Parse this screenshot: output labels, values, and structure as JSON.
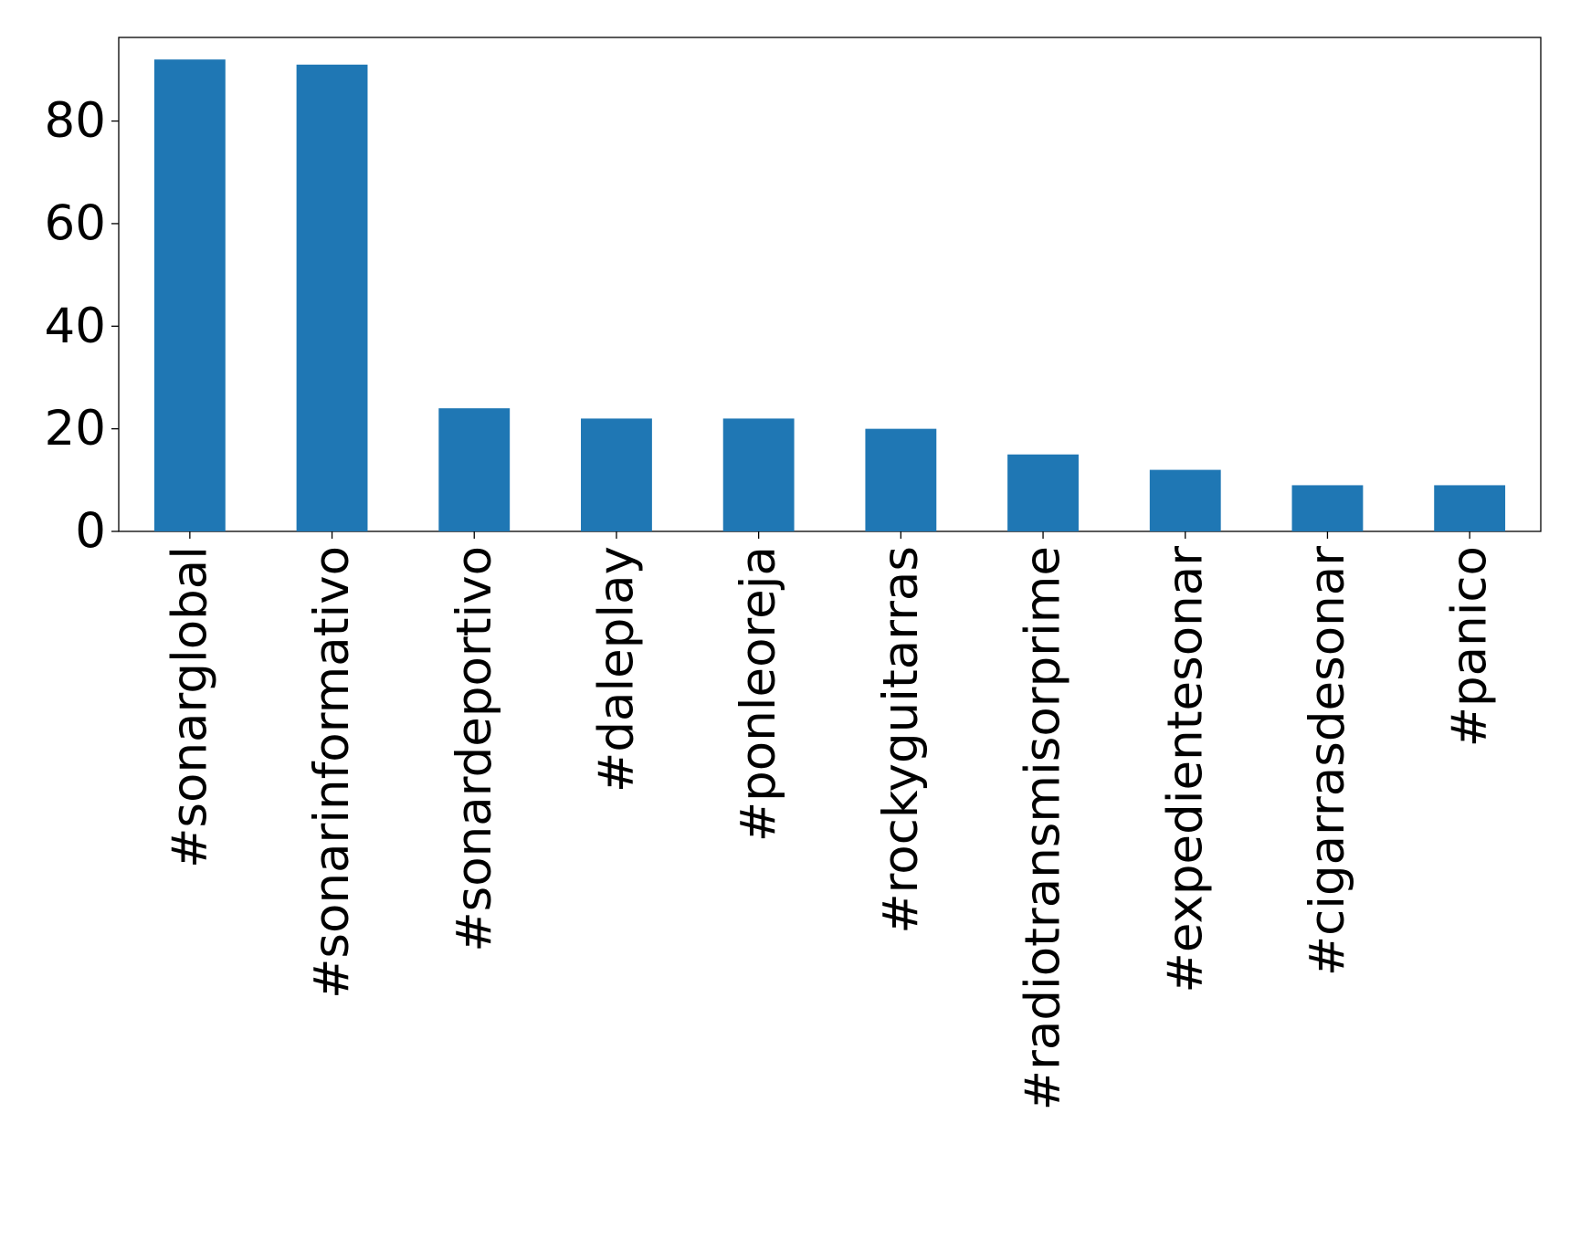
{
  "chart_data": {
    "type": "bar",
    "categories": [
      "#sonarglobal",
      "#sonarinformativo",
      "#sonardeportivo",
      "#daleplay",
      "#ponleoreja",
      "#rockyguitarras",
      "#radiotransmisorprime",
      "#expedientesonar",
      "#cigarrasdesonar",
      "#panico"
    ],
    "values": [
      92,
      91,
      24,
      22,
      22,
      20,
      15,
      12,
      9,
      9
    ],
    "color": "#1f77b4",
    "ylim": [
      0,
      96.3
    ],
    "yticks": [
      0,
      20,
      40,
      60,
      80
    ],
    "grid": false
  }
}
